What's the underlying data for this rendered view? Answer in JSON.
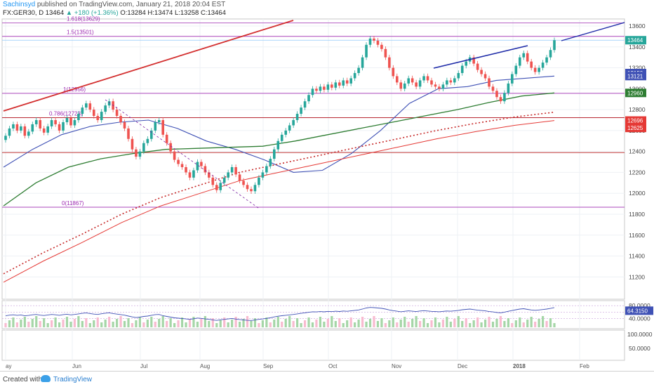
{
  "header": {
    "user": "Sachinsyd",
    "published": " published on TradingView.com, January 21, 2018 20:04 EST",
    "symbol_line": "FX:GER30, D  13464",
    "change": "▲ +180 (+1.36%)",
    "ohlc": " O:13284 H:13474 L:13258 C:13464"
  },
  "footer": {
    "created": "Created with",
    "brand": "TradingView"
  },
  "colors": {
    "up": "#26a69a",
    "down": "#ef5350",
    "sma_blue": "#3f51b5",
    "sma_green": "#2e7d32",
    "sma_red": "#e53935",
    "fib": "#ab47bc",
    "trend_red": "#d32f2f",
    "trend_blue": "#1e2ba8",
    "rsi_line": "#3f51b5",
    "vol_up": "#a5d6a7",
    "vol_down": "#f8bbd0"
  },
  "chart_data": {
    "type": "candlestick",
    "symbol": "FX:GER30",
    "interval": "D",
    "ylim": [
      11000,
      13700
    ],
    "y_ticks": [
      11200,
      11400,
      11600,
      11800,
      12000,
      12200,
      12400,
      12600,
      12800,
      13000,
      13200,
      13400,
      13600
    ],
    "x_ticks": [
      "ay",
      "Jun",
      "Jul",
      "Aug",
      "Sep",
      "Oct",
      "Nov",
      "Dec",
      "2018",
      "Feb"
    ],
    "fib_levels": [
      {
        "label": "1.618(13629)",
        "value": 13629
      },
      {
        "label": "1.5(13501)",
        "value": 13501
      },
      {
        "label": "1(12956)",
        "value": 12956
      },
      {
        "label": "0.786(12723)",
        "value": 12723
      },
      {
        "label": "0(11867)",
        "value": 11867
      }
    ],
    "horizontal_lines": [
      13464,
      12723,
      12390
    ],
    "price_badges": [
      {
        "text": "13464",
        "value": 13464,
        "color": "#26a69a"
      },
      {
        "text": "13150",
        "value": 13150,
        "color": "#3f51b5"
      },
      {
        "text": "13121",
        "value": 13121,
        "color": "#3f51b5"
      },
      {
        "text": "12960",
        "value": 12960,
        "color": "#2e7d32"
      },
      {
        "text": "12696",
        "value": 12696,
        "color": "#e53935"
      },
      {
        "text": "12625",
        "value": 12625,
        "color": "#e53935"
      }
    ],
    "closes": [
      12550,
      12620,
      12660,
      12600,
      12640,
      12550,
      12590,
      12660,
      12700,
      12620,
      12580,
      12640,
      12700,
      12660,
      12600,
      12680,
      12720,
      12650,
      12700,
      12760,
      12820,
      12860,
      12800,
      12740,
      12700,
      12780,
      12840,
      12880,
      12800,
      12740,
      12680,
      12620,
      12520,
      12420,
      12350,
      12400,
      12480,
      12520,
      12600,
      12680,
      12700,
      12560,
      12480,
      12400,
      12320,
      12280,
      12250,
      12200,
      12150,
      12220,
      12300,
      12260,
      12200,
      12150,
      12080,
      12030,
      12100,
      12150,
      12200,
      12250,
      12180,
      12120,
      12080,
      12040,
      12020,
      12080,
      12150,
      12200,
      12260,
      12330,
      12420,
      12500,
      12560,
      12600,
      12650,
      12700,
      12760,
      12820,
      12880,
      12940,
      13000,
      12980,
      13020,
      12990,
      13040,
      13010,
      13060,
      13030,
      13080,
      13050,
      13100,
      13150,
      13200,
      13300,
      13420,
      13480,
      13460,
      13420,
      13380,
      13300,
      13200,
      13120,
      13060,
      13000,
      13050,
      13100,
      13060,
      13020,
      13080,
      13120,
      13080,
      13040,
      13020,
      13000,
      13040,
      13080,
      13060,
      13100,
      13150,
      13220,
      13260,
      13300,
      13240,
      13180,
      13140,
      13100,
      13020,
      12980,
      12920,
      12880,
      12960,
      13050,
      13140,
      13220,
      13300,
      13340,
      13260,
      13200,
      13160,
      13200,
      13250,
      13300,
      13370,
      13464
    ],
    "sma_blue": [
      12250,
      12420,
      12560,
      12640,
      12680,
      12700,
      12620,
      12500,
      12420,
      12320,
      12200,
      12220,
      12380,
      12600,
      12860,
      13000,
      13020,
      13080,
      13100,
      13121
    ],
    "sma_green": [
      11880,
      12100,
      12250,
      12330,
      12380,
      12420,
      12430,
      12440,
      12450,
      12500,
      12560,
      12620,
      12680,
      12740,
      12800,
      12870,
      12930,
      12960
    ],
    "sma_red": [
      11150,
      11350,
      11530,
      11720,
      11880,
      12000,
      12120,
      12200,
      12280,
      12360,
      12440,
      12520,
      12590,
      12650,
      12696
    ],
    "rsi": {
      "levels": [
        80,
        60,
        40
      ],
      "last": 64.315,
      "label": "64.3150"
    },
    "volume_axis": [
      100.0,
      50.0
    ],
    "volume_label": "100.0000"
  }
}
